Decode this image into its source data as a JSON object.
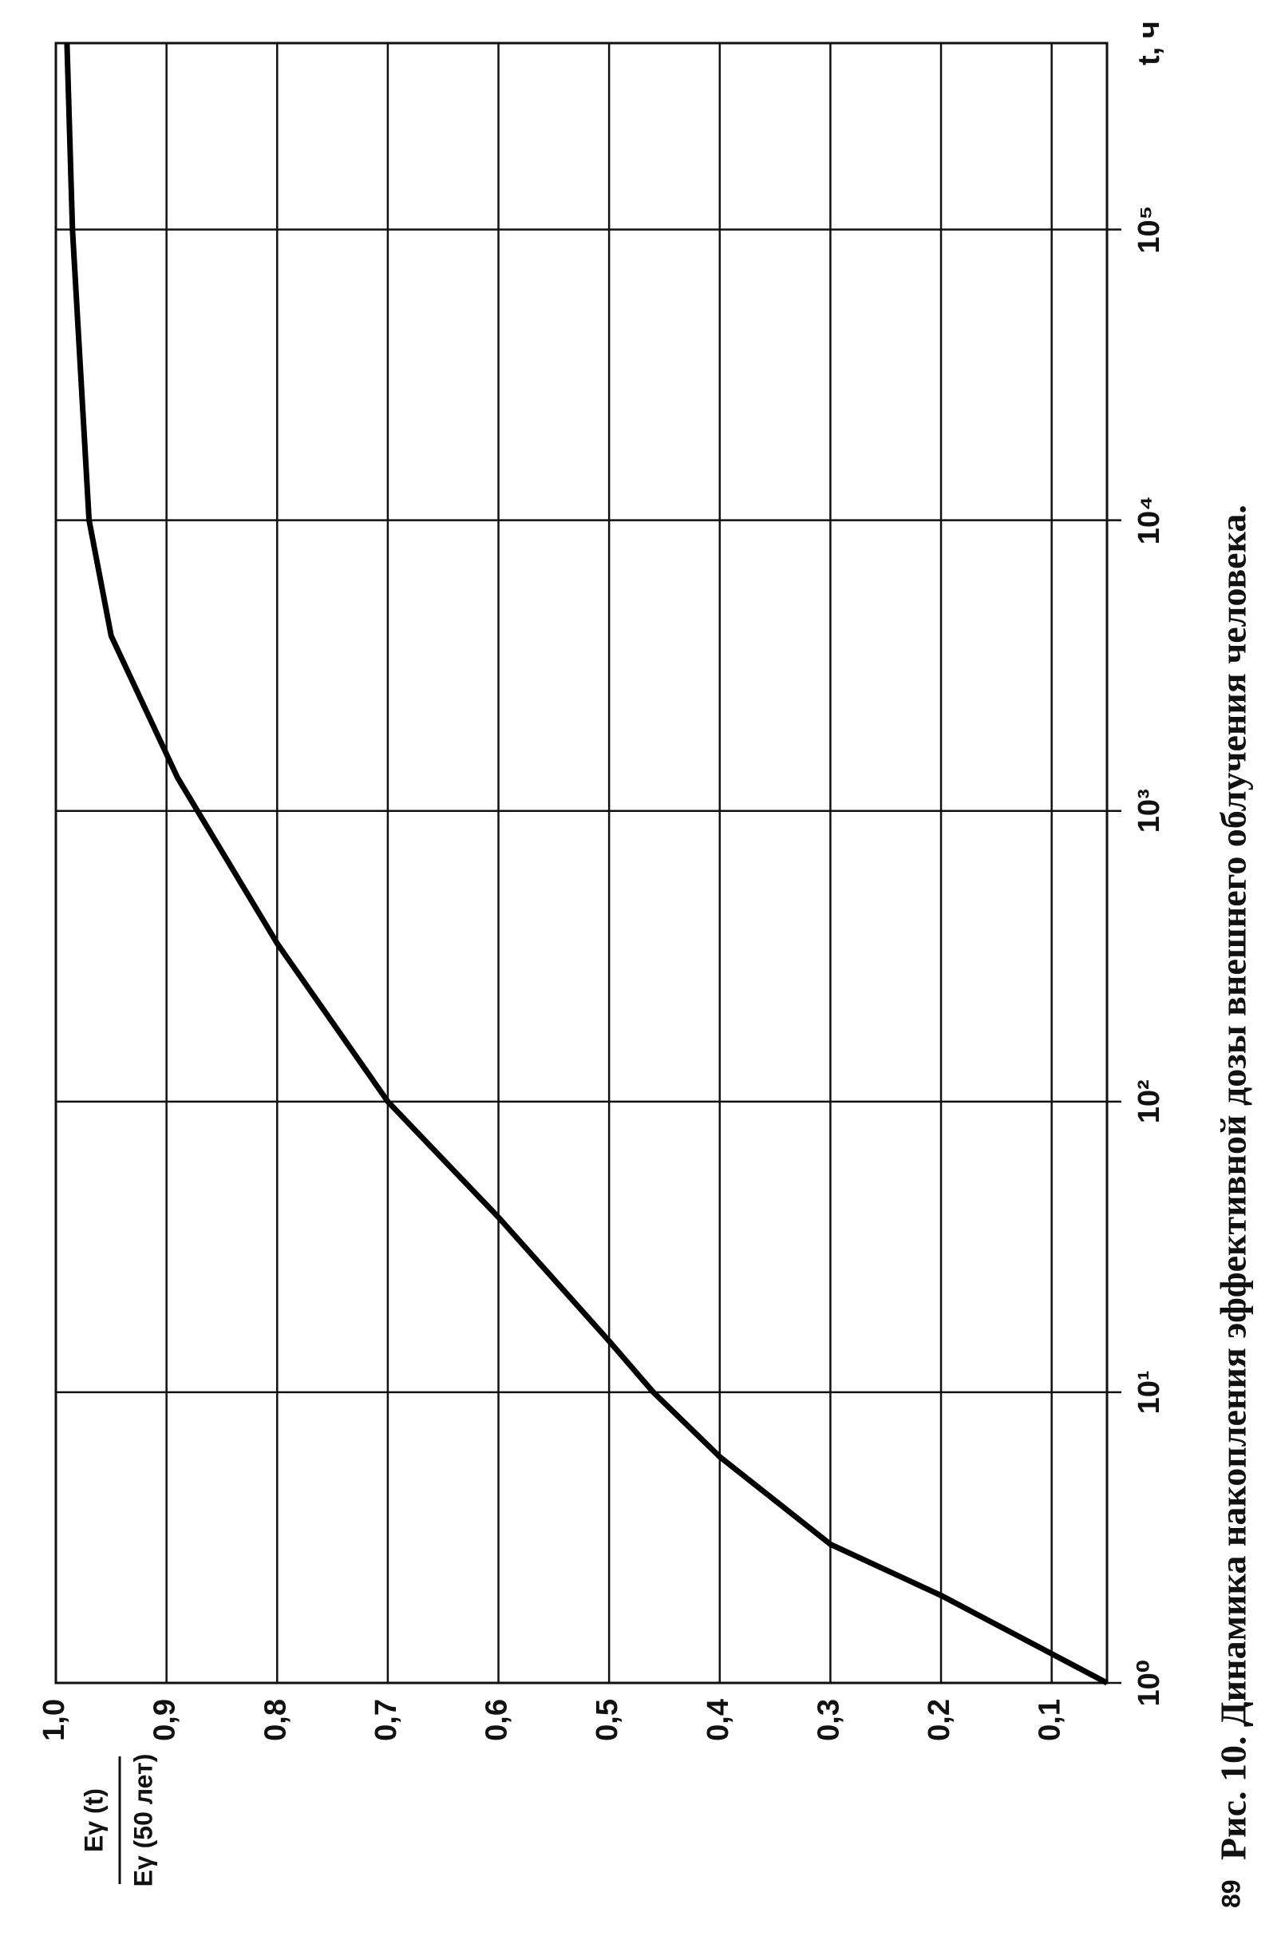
{
  "page_number": "89",
  "chart_data": {
    "type": "line",
    "log_x": true,
    "grid": true,
    "caption": "Рис. 10. Динамика накопления эффективной дозы внешнего облучения человека.",
    "x_label": "t, ч",
    "y_label": {
      "numerator": "Eγ (t)",
      "denominator": "Eγ (50 лет)"
    },
    "x": [
      1,
      2,
      3,
      6,
      10,
      15,
      40,
      100,
      350,
      1300,
      4000,
      10000,
      100000,
      438000
    ],
    "series": [
      {
        "color": "#000000",
        "values": [
          0.05,
          0.2,
          0.3,
          0.4,
          0.46,
          0.5,
          0.6,
          0.7,
          0.8,
          0.89,
          0.95,
          0.97,
          0.985,
          0.99
        ]
      }
    ],
    "xlim": [
      1,
      438000
    ],
    "xticks": [
      {
        "value": 1,
        "label": "10⁰"
      },
      {
        "value": 10,
        "label": "10¹"
      },
      {
        "value": 100,
        "label": "10²"
      },
      {
        "value": 1000,
        "label": "10³"
      },
      {
        "value": 10000,
        "label": "10⁴"
      },
      {
        "value": 100000,
        "label": "10⁵"
      }
    ],
    "ylim": [
      0.05,
      1
    ],
    "yticks": [
      {
        "value": 0.1,
        "label": "0,1"
      },
      {
        "value": 0.2,
        "label": "0,2"
      },
      {
        "value": 0.3,
        "label": "0,3"
      },
      {
        "value": 0.4,
        "label": "0,4"
      },
      {
        "value": 0.5,
        "label": "0,5"
      },
      {
        "value": 0.6,
        "label": "0,6"
      },
      {
        "value": 0.7,
        "label": "0,7"
      },
      {
        "value": 0.8,
        "label": "0,8"
      },
      {
        "value": 0.9,
        "label": "0,9"
      },
      {
        "value": 1,
        "label": "1,0"
      }
    ]
  }
}
